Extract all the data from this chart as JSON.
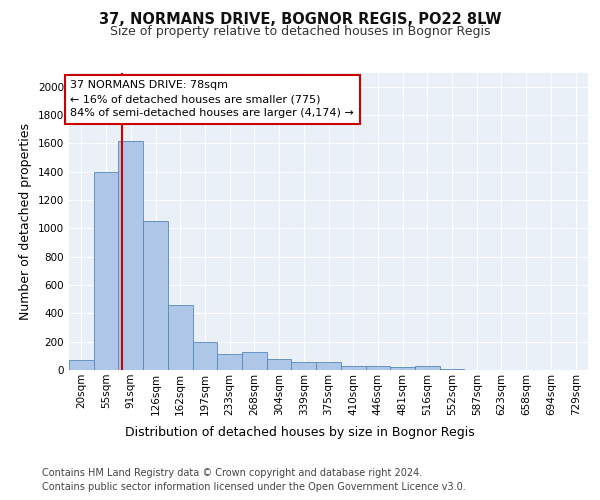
{
  "title": "37, NORMANS DRIVE, BOGNOR REGIS, PO22 8LW",
  "subtitle": "Size of property relative to detached houses in Bognor Regis",
  "xlabel": "Distribution of detached houses by size in Bognor Regis",
  "ylabel": "Number of detached properties",
  "bin_labels": [
    "20sqm",
    "55sqm",
    "91sqm",
    "126sqm",
    "162sqm",
    "197sqm",
    "233sqm",
    "268sqm",
    "304sqm",
    "339sqm",
    "375sqm",
    "410sqm",
    "446sqm",
    "481sqm",
    "516sqm",
    "552sqm",
    "587sqm",
    "623sqm",
    "658sqm",
    "694sqm",
    "729sqm"
  ],
  "bin_edges": [
    2.5,
    37.5,
    72.5,
    107.5,
    142.5,
    177.5,
    212.5,
    247.5,
    282.5,
    317.5,
    352.5,
    387.5,
    422.5,
    457.5,
    492.5,
    527.5,
    562.5,
    597.5,
    632.5,
    667.5,
    702.5,
    737.5
  ],
  "bar_heights": [
    70,
    1400,
    1620,
    1050,
    460,
    200,
    115,
    130,
    80,
    55,
    60,
    30,
    30,
    20,
    25,
    5,
    0,
    0,
    0,
    0,
    0
  ],
  "bar_color": "#aec6e8",
  "bar_edge_color": "#5588bb",
  "property_size": 78,
  "property_line_color": "#cc0000",
  "annotation_text": "37 NORMANS DRIVE: 78sqm\n← 16% of detached houses are smaller (775)\n84% of semi-detached houses are larger (4,174) →",
  "annotation_box_color": "#ffffff",
  "annotation_box_edge_color": "#cc0000",
  "ylim": [
    0,
    2100
  ],
  "yticks": [
    0,
    200,
    400,
    600,
    800,
    1000,
    1200,
    1400,
    1600,
    1800,
    2000
  ],
  "footer_text": "Contains HM Land Registry data © Crown copyright and database right 2024.\nContains public sector information licensed under the Open Government Licence v3.0.",
  "background_color": "#eaf0f8",
  "grid_color": "#ffffff",
  "title_fontsize": 10.5,
  "subtitle_fontsize": 9,
  "axis_label_fontsize": 9,
  "tick_fontsize": 7.5,
  "annotation_fontsize": 8,
  "footer_fontsize": 7
}
